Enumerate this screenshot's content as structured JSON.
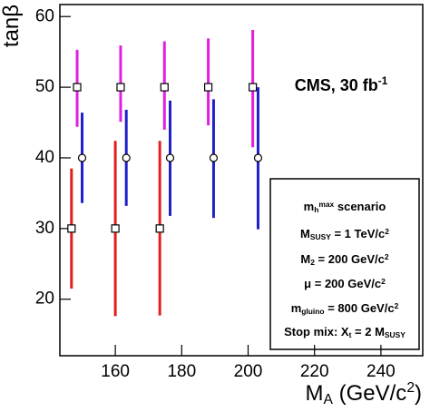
{
  "chart_data": {
    "type": "errorbar",
    "y_label": [
      {
        "t": "tanβ"
      }
    ],
    "x_label": [
      {
        "t": "M"
      },
      {
        "t": "A",
        "s": "sub"
      },
      {
        "t": " (GeV/c"
      },
      {
        "t": "2",
        "s": "sup"
      },
      {
        "t": ")"
      }
    ],
    "xlim": [
      143.3,
      252.6
    ],
    "ylim": [
      12,
      61.7
    ],
    "xticks": [
      160,
      180,
      200,
      220,
      240
    ],
    "yticks": [
      20,
      30,
      40,
      50,
      60
    ],
    "annotation": [
      {
        "t": "CMS, 30 fb"
      },
      {
        "t": "-1",
        "s": "sup"
      }
    ],
    "box_lines": [
      [
        {
          "t": "m"
        },
        {
          "t": "h",
          "s": "sub"
        },
        {
          "t": "max",
          "s": "sup"
        },
        {
          "t": " scenario"
        }
      ],
      [
        {
          "t": "M"
        },
        {
          "t": "SUSY",
          "s": "sub"
        },
        {
          "t": " = 1 TeV/c"
        },
        {
          "t": "2",
          "s": "sup"
        }
      ],
      [
        {
          "t": "M"
        },
        {
          "t": "2",
          "s": "sub"
        },
        {
          "t": " = 200 GeV/c"
        },
        {
          "t": "2",
          "s": "sup"
        }
      ],
      [
        {
          "t": "μ = 200 GeV/c"
        },
        {
          "t": "2",
          "s": "sup"
        }
      ],
      [
        {
          "t": "m"
        },
        {
          "t": "gluino",
          "s": "sub"
        },
        {
          "t": " = 800 GeV/c"
        },
        {
          "t": "2",
          "s": "sup"
        }
      ],
      [
        {
          "t": "Stop mix: X"
        },
        {
          "t": "t",
          "s": "sub"
        },
        {
          "t": " = 2 M"
        },
        {
          "t": "SUSY",
          "s": "sub"
        }
      ]
    ],
    "series": [
      {
        "color": "#e01ee0",
        "marker": "square",
        "x": [
          148.5,
          161.6,
          174.8,
          188,
          201.4
        ],
        "values": [
          50,
          50,
          50,
          50,
          50
        ],
        "lower": [
          44.4,
          45.1,
          44,
          44.6,
          41.5
        ],
        "upper": [
          55.3,
          55.9,
          56.5,
          56.9,
          58.1
        ]
      },
      {
        "color": "#2020c8",
        "marker": "circle",
        "x": [
          150,
          163.3,
          176.5,
          189.6,
          203
        ],
        "values": [
          40,
          40,
          40,
          40,
          40
        ],
        "lower": [
          33.6,
          33.2,
          31.8,
          31.5,
          29.9
        ],
        "upper": [
          46.4,
          46.8,
          48.1,
          48.3,
          50
        ]
      },
      {
        "color": "#e02020",
        "marker": "square",
        "x": [
          146.8,
          160,
          173.4
        ],
        "values": [
          30,
          30,
          30
        ],
        "lower": [
          21.5,
          17.6,
          17.7
        ],
        "upper": [
          38.5,
          42.4,
          42.4
        ]
      }
    ]
  }
}
